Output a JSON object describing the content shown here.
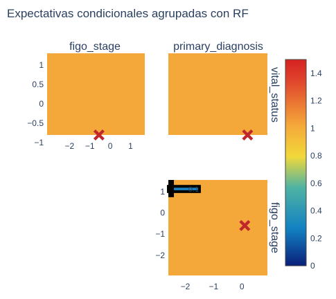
{
  "chart_data": {
    "type": "heatmap",
    "title": "Expectativas condicionales agrupadas con RF",
    "colorscale": {
      "range": [
        0,
        1.5
      ],
      "ticks": [
        "0",
        "0.2",
        "0.4",
        "0.6",
        "0.8",
        "1",
        "1.2",
        "1.4"
      ],
      "tick_values": [
        0,
        0.2,
        0.4,
        0.6,
        0.8,
        1.0,
        1.2,
        1.4
      ],
      "stops": [
        "#0a1f7a",
        "#1281c2",
        "#4fb3a3",
        "#f2d83a",
        "#f5a83a",
        "#e0432c",
        "#d52221"
      ]
    },
    "panels": [
      {
        "id": "figo_stage-vs-vital_status",
        "column_title": "figo_stage",
        "row_title": "",
        "fill_value": 1.0,
        "fill_color": "#f5a83a",
        "xlim": [
          -3.1,
          1.7
        ],
        "ylim": [
          -0.8,
          1.3
        ],
        "xticks": [
          -2,
          -1,
          0,
          1
        ],
        "xtick_labels": [
          "−2",
          "−1",
          "0",
          "1"
        ],
        "yticks": [
          -1,
          -0.5,
          0,
          0.5,
          1
        ],
        "ytick_labels": [
          "−1",
          "−0.5",
          "0",
          "0.5",
          "1"
        ],
        "marker": {
          "x": -0.55,
          "y": -0.8,
          "symbol": "x",
          "color": "#c0272d"
        }
      },
      {
        "id": "primary_diagnosis-vs-vital_status",
        "column_title": "primary_diagnosis",
        "row_title": "vital_status",
        "fill_value": 1.0,
        "fill_color": "#f5a83a",
        "xlim": [
          0,
          1
        ],
        "ylim": [
          0,
          1
        ],
        "marker": {
          "x": 0.8,
          "y": 0.0,
          "symbol": "x",
          "color": "#c0272d"
        }
      },
      {
        "id": "primary_diagnosis-vs-figo_stage",
        "column_title": "",
        "row_title": "figo_stage",
        "fill_value": 1.0,
        "fill_color": "#f5a83a",
        "xlim": [
          -2.6,
          0.9
        ],
        "ylim": [
          -2.95,
          1.55
        ],
        "xticks": [
          -2,
          -1,
          0
        ],
        "xtick_labels": [
          "−2",
          "−1",
          "0"
        ],
        "yticks": [
          -2,
          -1,
          0,
          1
        ],
        "ytick_labels": [
          "−2",
          "−1",
          "0",
          "1"
        ],
        "band": {
          "x0": -2.6,
          "x1": -1.5,
          "y0": 1.0,
          "y1": 1.25,
          "label": "0.1"
        },
        "marker": {
          "x": 0.1,
          "y": -0.6,
          "symbol": "x",
          "color": "#c0272d"
        }
      }
    ]
  }
}
